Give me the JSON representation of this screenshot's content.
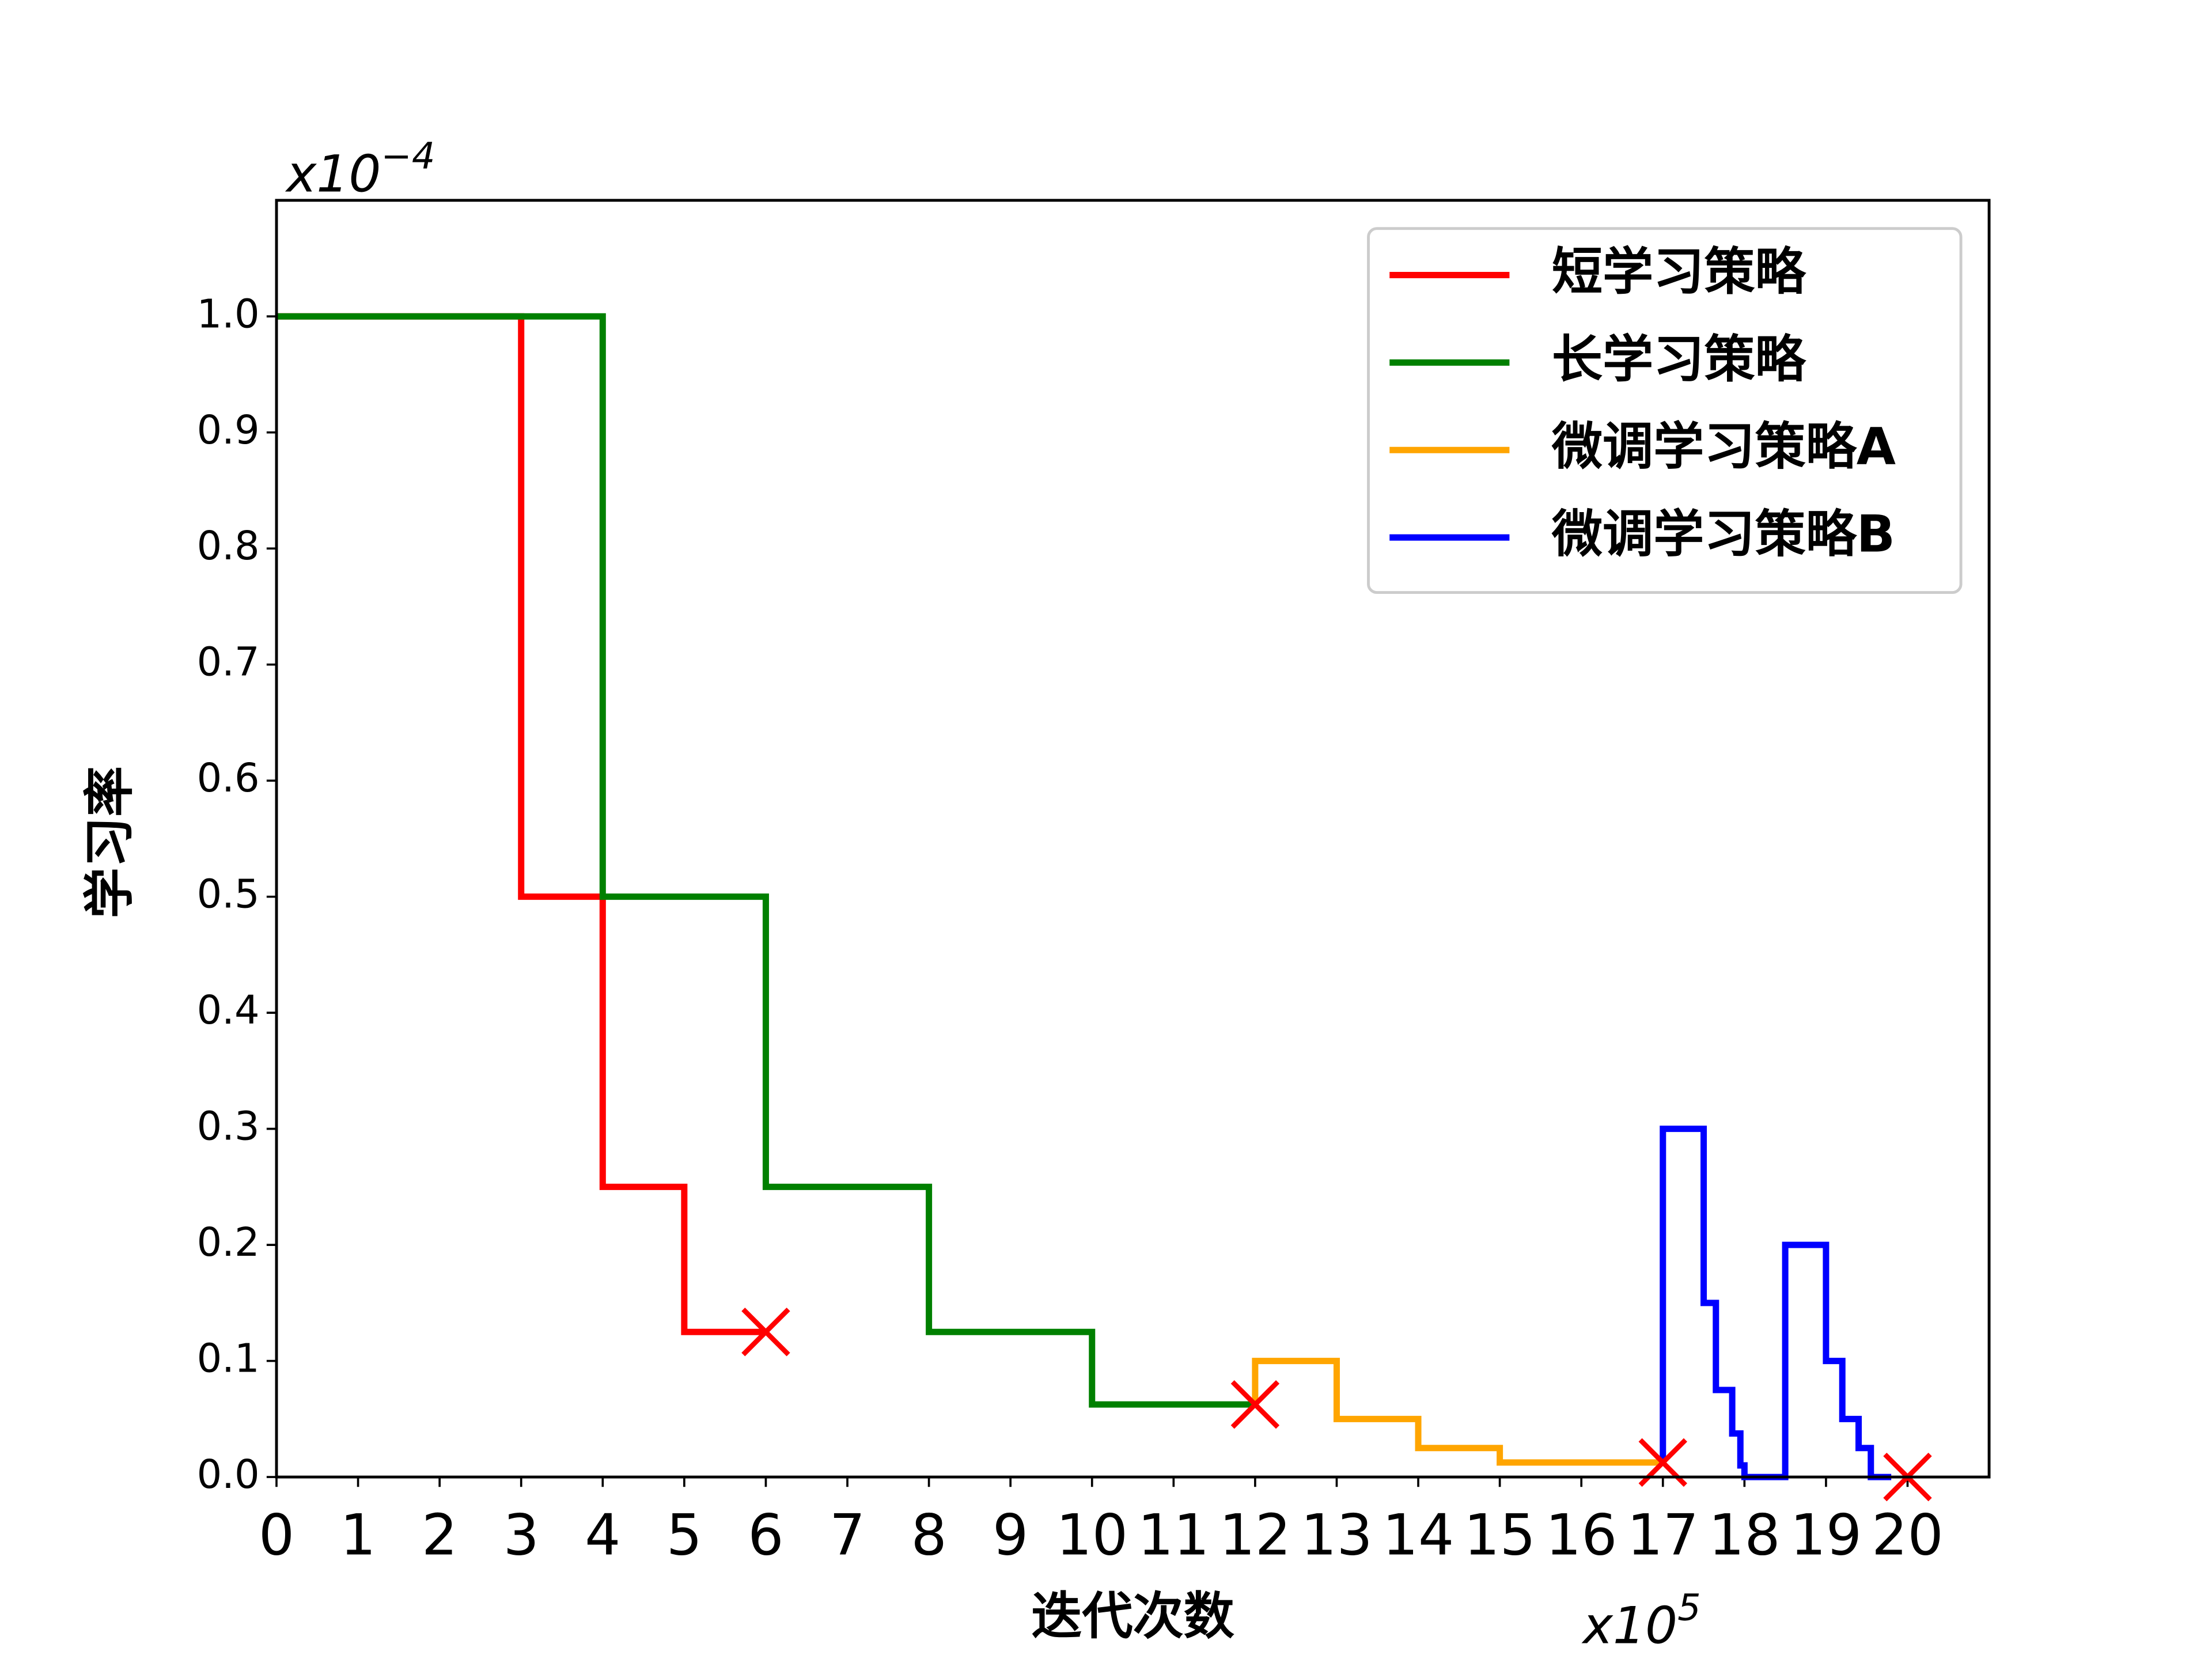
{
  "chart_data": {
    "type": "step",
    "x_label": "迭代次数",
    "y_label": "学习率",
    "x_multiplier": {
      "base": "x10",
      "exp": "5"
    },
    "y_multiplier": {
      "base": "x10",
      "exp": "−4"
    },
    "xlim": [
      0,
      21
    ],
    "ylim": [
      0,
      1.1
    ],
    "xticks": [
      0,
      1,
      2,
      3,
      4,
      5,
      6,
      7,
      8,
      9,
      10,
      11,
      12,
      13,
      14,
      15,
      16,
      17,
      18,
      19,
      20
    ],
    "yticks": [
      {
        "value": 0,
        "label": "0.0"
      },
      0.1,
      0.2,
      0.3,
      0.4,
      0.5,
      0.6,
      0.7,
      0.8,
      0.9,
      {
        "value": 1,
        "label": "1.0"
      }
    ],
    "legend": "upper right",
    "series": [
      {
        "name": "短学习策略",
        "color": "red",
        "x": [
          0,
          3,
          3,
          4,
          4,
          5,
          5,
          6
        ],
        "y": [
          1,
          1,
          0.5,
          0.5,
          0.25,
          0.25,
          0.125,
          0.125
        ]
      },
      {
        "name": "长学习策略",
        "color": "green",
        "x": [
          0,
          4,
          4,
          6,
          6,
          8,
          8,
          10,
          10,
          12
        ],
        "y": [
          1,
          1,
          0.5,
          0.5,
          0.25,
          0.25,
          0.125,
          0.125,
          0.0625,
          0.0625
        ]
      },
      {
        "name": "微调学习策略A",
        "color": "orange",
        "x": [
          12,
          12,
          13,
          13,
          14,
          14,
          15,
          15,
          17
        ],
        "y": [
          0.0625,
          0.1,
          0.1,
          0.05,
          0.05,
          0.025,
          0.025,
          0.0125,
          0.0125
        ]
      },
      {
        "name": "微调学习策略B",
        "color": "blue",
        "x": [
          17,
          17,
          17.5,
          17.5,
          17.65,
          17.65,
          17.85,
          17.85,
          17.95,
          17.95,
          18,
          18,
          18.5,
          18.5,
          19,
          19,
          19.2,
          19.2,
          19.4,
          19.4,
          19.55,
          19.55,
          19.8
        ],
        "y": [
          0.0125,
          0.3,
          0.3,
          0.15,
          0.15,
          0.075,
          0.075,
          0.0375,
          0.0375,
          0.01,
          0.01,
          0,
          0,
          0.2,
          0.2,
          0.1,
          0.1,
          0.05,
          0.05,
          0.025,
          0.025,
          0,
          0
        ]
      }
    ],
    "markers": {
      "color": "red",
      "x": [
        6,
        12,
        17,
        20
      ],
      "y": [
        0.125,
        0.0625,
        0.0125,
        0
      ]
    }
  }
}
